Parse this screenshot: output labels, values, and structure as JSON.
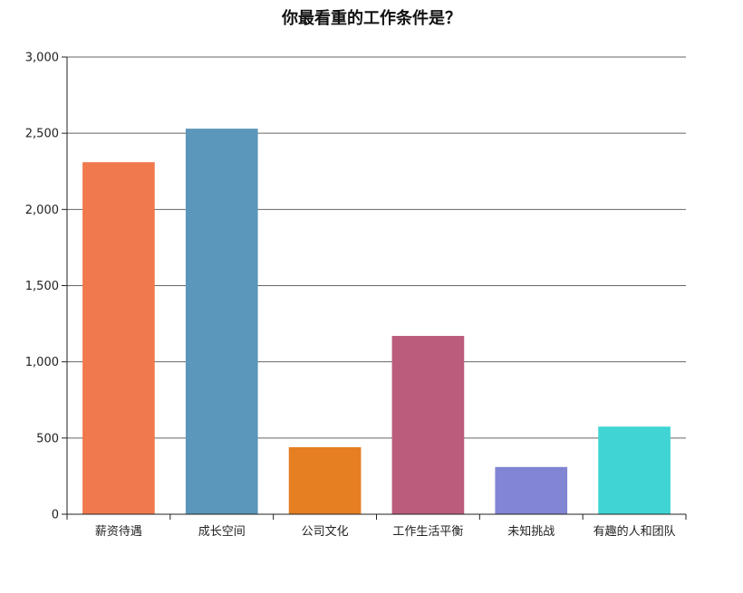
{
  "chart_data": {
    "type": "bar",
    "title": "你最看重的工作条件是？",
    "categories": [
      "薪资待遇",
      "成长空间",
      "公司文化",
      "工作生活平衡",
      "未知挑战",
      "有趣的人和团队"
    ],
    "values": [
      2310,
      2530,
      440,
      1170,
      310,
      575
    ],
    "colors": [
      "#f07a4e",
      "#5b96bb",
      "#e57f22",
      "#bb5c7d",
      "#8185d3",
      "#40d4d4"
    ],
    "ylim": [
      0,
      3000
    ],
    "yticks": [
      0,
      500,
      1000,
      1500,
      2000,
      2500,
      3000
    ],
    "ytick_labels": [
      "0",
      "500",
      "1,000",
      "1,500",
      "2,000",
      "2,500",
      "3,000"
    ],
    "grid": true,
    "xlabel": "",
    "ylabel": ""
  }
}
